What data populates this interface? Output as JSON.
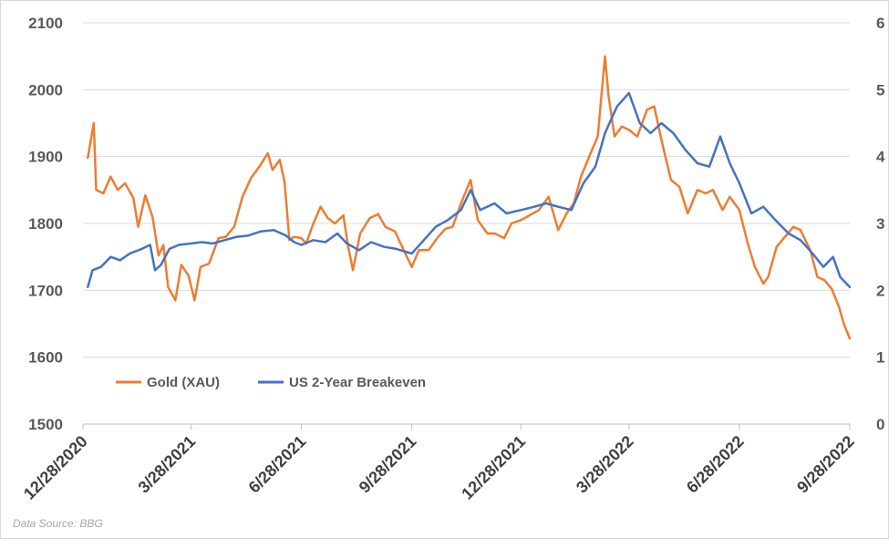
{
  "chart_data": {
    "type": "line",
    "xlabel": "",
    "ylabel": "",
    "ylim": [
      1500,
      2100
    ],
    "y2lim": [
      0,
      6
    ],
    "y_ticks": [
      1500,
      1600,
      1700,
      1800,
      1900,
      2000,
      2100
    ],
    "y2_ticks": [
      0,
      1,
      2,
      3,
      4,
      5,
      6
    ],
    "x_range": [
      "12/28/2020",
      "9/28/2022"
    ],
    "x_ticks": [
      "12/28/2020",
      "3/28/2021",
      "6/28/2021",
      "9/28/2021",
      "12/28/2021",
      "3/28/2022",
      "6/28/2022",
      "9/28/2022"
    ],
    "grid": "horizontal",
    "legend_position": "lower-left",
    "series": [
      {
        "name": "Gold (XAU)",
        "axis": "left",
        "color": "#ED7D31",
        "points": [
          [
            "1/1/2021",
            1898
          ],
          [
            "1/6/2021",
            1950
          ],
          [
            "1/8/2021",
            1850
          ],
          [
            "1/14/2021",
            1845
          ],
          [
            "1/20/2021",
            1870
          ],
          [
            "1/26/2021",
            1850
          ],
          [
            "2/1/2021",
            1860
          ],
          [
            "2/8/2021",
            1838
          ],
          [
            "2/12/2021",
            1795
          ],
          [
            "2/18/2021",
            1842
          ],
          [
            "2/24/2021",
            1810
          ],
          [
            "3/1/2021",
            1752
          ],
          [
            "3/5/2021",
            1768
          ],
          [
            "3/9/2021",
            1705
          ],
          [
            "3/15/2021",
            1685
          ],
          [
            "3/20/2021",
            1738
          ],
          [
            "3/26/2021",
            1722
          ],
          [
            "3/31/2021",
            1685
          ],
          [
            "4/5/2021",
            1735
          ],
          [
            "4/12/2021",
            1740
          ],
          [
            "4/20/2021",
            1778
          ],
          [
            "4/26/2021",
            1780
          ],
          [
            "5/3/2021",
            1795
          ],
          [
            "5/10/2021",
            1840
          ],
          [
            "5/17/2021",
            1868
          ],
          [
            "5/24/2021",
            1885
          ],
          [
            "5/31/2021",
            1905
          ],
          [
            "6/4/2021",
            1880
          ],
          [
            "6/10/2021",
            1895
          ],
          [
            "6/14/2021",
            1862
          ],
          [
            "6/18/2021",
            1775
          ],
          [
            "6/22/2021",
            1780
          ],
          [
            "6/28/2021",
            1778
          ],
          [
            "7/2/2021",
            1770
          ],
          [
            "7/8/2021",
            1800
          ],
          [
            "7/14/2021",
            1825
          ],
          [
            "7/20/2021",
            1808
          ],
          [
            "7/26/2021",
            1800
          ],
          [
            "8/2/2021",
            1812
          ],
          [
            "8/6/2021",
            1765
          ],
          [
            "8/10/2021",
            1730
          ],
          [
            "8/16/2021",
            1785
          ],
          [
            "8/24/2021",
            1808
          ],
          [
            "8/31/2021",
            1814
          ],
          [
            "9/6/2021",
            1795
          ],
          [
            "9/14/2021",
            1788
          ],
          [
            "9/20/2021",
            1765
          ],
          [
            "9/28/2021",
            1735
          ],
          [
            "10/4/2021",
            1760
          ],
          [
            "10/12/2021",
            1760
          ],
          [
            "10/20/2021",
            1780
          ],
          [
            "10/26/2021",
            1792
          ],
          [
            "11/1/2021",
            1795
          ],
          [
            "11/8/2021",
            1830
          ],
          [
            "11/16/2021",
            1865
          ],
          [
            "11/22/2021",
            1805
          ],
          [
            "11/30/2021",
            1785
          ],
          [
            "12/6/2021",
            1785
          ],
          [
            "12/14/2021",
            1778
          ],
          [
            "12/20/2021",
            1800
          ],
          [
            "12/28/2021",
            1805
          ],
          [
            "1/4/2022",
            1812
          ],
          [
            "1/12/2022",
            1820
          ],
          [
            "1/20/2022",
            1840
          ],
          [
            "1/28/2022",
            1790
          ],
          [
            "2/4/2022",
            1815
          ],
          [
            "2/10/2022",
            1830
          ],
          [
            "2/16/2022",
            1870
          ],
          [
            "2/24/2022",
            1905
          ],
          [
            "3/2/2022",
            1930
          ],
          [
            "3/8/2022",
            2050
          ],
          [
            "3/11/2022",
            1990
          ],
          [
            "3/16/2022",
            1930
          ],
          [
            "3/22/2022",
            1945
          ],
          [
            "3/28/2022",
            1940
          ],
          [
            "4/4/2022",
            1930
          ],
          [
            "4/12/2022",
            1970
          ],
          [
            "4/18/2022",
            1975
          ],
          [
            "4/24/2022",
            1925
          ],
          [
            "5/2/2022",
            1865
          ],
          [
            "5/9/2022",
            1855
          ],
          [
            "5/16/2022",
            1815
          ],
          [
            "5/24/2022",
            1850
          ],
          [
            "5/31/2022",
            1845
          ],
          [
            "6/6/2022",
            1850
          ],
          [
            "6/14/2022",
            1820
          ],
          [
            "6/20/2022",
            1840
          ],
          [
            "6/28/2022",
            1820
          ],
          [
            "7/5/2022",
            1770
          ],
          [
            "7/11/2022",
            1735
          ],
          [
            "7/18/2022",
            1710
          ],
          [
            "7/22/2022",
            1720
          ],
          [
            "7/29/2022",
            1765
          ],
          [
            "8/5/2022",
            1780
          ],
          [
            "8/12/2022",
            1795
          ],
          [
            "8/18/2022",
            1790
          ],
          [
            "8/26/2022",
            1760
          ],
          [
            "9/1/2022",
            1720
          ],
          [
            "9/7/2022",
            1715
          ],
          [
            "9/13/2022",
            1702
          ],
          [
            "9/19/2022",
            1675
          ],
          [
            "9/23/2022",
            1650
          ],
          [
            "9/28/2022",
            1628
          ]
        ]
      },
      {
        "name": "US 2-Year Breakeven",
        "axis": "right",
        "color": "#4472C4",
        "points": [
          [
            "1/1/2021",
            2.05
          ],
          [
            "1/5/2021",
            2.3
          ],
          [
            "1/12/2021",
            2.35
          ],
          [
            "1/20/2021",
            2.5
          ],
          [
            "1/28/2021",
            2.45
          ],
          [
            "2/5/2021",
            2.55
          ],
          [
            "2/15/2021",
            2.62
          ],
          [
            "2/22/2021",
            2.68
          ],
          [
            "2/26/2021",
            2.3
          ],
          [
            "3/3/2021",
            2.38
          ],
          [
            "3/10/2021",
            2.62
          ],
          [
            "3/18/2021",
            2.68
          ],
          [
            "3/28/2021",
            2.7
          ],
          [
            "4/6/2021",
            2.72
          ],
          [
            "4/15/2021",
            2.7
          ],
          [
            "4/25/2021",
            2.75
          ],
          [
            "5/5/2021",
            2.8
          ],
          [
            "5/15/2021",
            2.82
          ],
          [
            "5/25/2021",
            2.88
          ],
          [
            "6/5/2021",
            2.9
          ],
          [
            "6/15/2021",
            2.82
          ],
          [
            "6/22/2021",
            2.72
          ],
          [
            "6/28/2021",
            2.68
          ],
          [
            "7/8/2021",
            2.75
          ],
          [
            "7/18/2021",
            2.72
          ],
          [
            "7/28/2021",
            2.85
          ],
          [
            "8/5/2021",
            2.7
          ],
          [
            "8/15/2021",
            2.6
          ],
          [
            "8/25/2021",
            2.72
          ],
          [
            "9/5/2021",
            2.65
          ],
          [
            "9/15/2021",
            2.62
          ],
          [
            "9/28/2021",
            2.55
          ],
          [
            "10/8/2021",
            2.75
          ],
          [
            "10/18/2021",
            2.95
          ],
          [
            "10/28/2021",
            3.05
          ],
          [
            "11/8/2021",
            3.2
          ],
          [
            "11/16/2021",
            3.5
          ],
          [
            "11/24/2021",
            3.2
          ],
          [
            "12/6/2021",
            3.3
          ],
          [
            "12/16/2021",
            3.15
          ],
          [
            "12/28/2021",
            3.2
          ],
          [
            "1/8/2022",
            3.25
          ],
          [
            "1/18/2022",
            3.3
          ],
          [
            "1/28/2022",
            3.25
          ],
          [
            "2/8/2022",
            3.2
          ],
          [
            "2/18/2022",
            3.6
          ],
          [
            "2/28/2022",
            3.85
          ],
          [
            "3/8/2022",
            4.35
          ],
          [
            "3/18/2022",
            4.75
          ],
          [
            "3/28/2022",
            4.95
          ],
          [
            "4/6/2022",
            4.5
          ],
          [
            "4/15/2022",
            4.35
          ],
          [
            "4/24/2022",
            4.5
          ],
          [
            "5/4/2022",
            4.35
          ],
          [
            "5/14/2022",
            4.1
          ],
          [
            "5/24/2022",
            3.9
          ],
          [
            "6/3/2022",
            3.85
          ],
          [
            "6/12/2022",
            4.3
          ],
          [
            "6/20/2022",
            3.9
          ],
          [
            "6/28/2022",
            3.6
          ],
          [
            "7/8/2022",
            3.15
          ],
          [
            "7/18/2022",
            3.25
          ],
          [
            "7/28/2022",
            3.05
          ],
          [
            "8/8/2022",
            2.85
          ],
          [
            "8/18/2022",
            2.75
          ],
          [
            "8/28/2022",
            2.55
          ],
          [
            "9/6/2022",
            2.35
          ],
          [
            "9/14/2022",
            2.5
          ],
          [
            "9/20/2022",
            2.2
          ],
          [
            "9/28/2022",
            2.05
          ]
        ]
      }
    ],
    "annotations": [
      "Data Source: BBG"
    ]
  }
}
